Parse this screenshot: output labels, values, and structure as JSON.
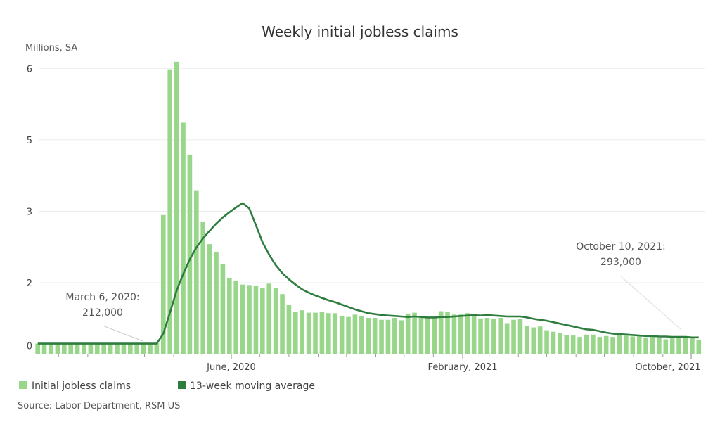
{
  "chart_data": {
    "type": "bar",
    "title": "Weekly initial jobless claims",
    "ylabel": "Millions, SA",
    "xlabel": "",
    "ylim": [
      0,
      6.3
    ],
    "grid": true,
    "yticks": [
      {
        "value": 0,
        "label": "0"
      },
      {
        "value": 1.5,
        "label": "2"
      },
      {
        "value": 3,
        "label": "3"
      },
      {
        "value": 4.5,
        "label": "5"
      },
      {
        "value": 6,
        "label": "6"
      }
    ],
    "xticks": [
      {
        "date": "2020-06-01",
        "label": "June, 2020"
      },
      {
        "date": "2021-02-01",
        "label": "February, 2021"
      },
      {
        "date": "2021-10-01",
        "label": "October, 2021"
      }
    ],
    "colors": {
      "bars": "#98d68a",
      "line": "#2e7d3f",
      "grid": "#ebebeb",
      "axis": "#888888"
    },
    "legend_position": "bottom-left",
    "dates": [
      "2019-11-09",
      "2019-11-16",
      "2019-11-23",
      "2019-11-30",
      "2019-12-07",
      "2019-12-14",
      "2019-12-21",
      "2019-12-28",
      "2020-01-04",
      "2020-01-11",
      "2020-01-18",
      "2020-01-25",
      "2020-02-01",
      "2020-02-08",
      "2020-02-15",
      "2020-02-22",
      "2020-02-29",
      "2020-03-07",
      "2020-03-14",
      "2020-03-21",
      "2020-03-28",
      "2020-04-04",
      "2020-04-11",
      "2020-04-18",
      "2020-04-25",
      "2020-05-02",
      "2020-05-09",
      "2020-05-16",
      "2020-05-23",
      "2020-05-30",
      "2020-06-06",
      "2020-06-13",
      "2020-06-20",
      "2020-06-27",
      "2020-07-04",
      "2020-07-11",
      "2020-07-18",
      "2020-07-25",
      "2020-08-01",
      "2020-08-08",
      "2020-08-15",
      "2020-08-22",
      "2020-08-29",
      "2020-09-05",
      "2020-09-12",
      "2020-09-19",
      "2020-09-26",
      "2020-10-03",
      "2020-10-10",
      "2020-10-17",
      "2020-10-24",
      "2020-10-31",
      "2020-11-07",
      "2020-11-14",
      "2020-11-21",
      "2020-11-28",
      "2020-12-05",
      "2020-12-12",
      "2020-12-19",
      "2020-12-26",
      "2021-01-02",
      "2021-01-09",
      "2021-01-16",
      "2021-01-23",
      "2021-01-30",
      "2021-02-06",
      "2021-02-13",
      "2021-02-20",
      "2021-02-27",
      "2021-03-06",
      "2021-03-13",
      "2021-03-20",
      "2021-03-27",
      "2021-04-03",
      "2021-04-10",
      "2021-04-17",
      "2021-04-24",
      "2021-05-01",
      "2021-05-08",
      "2021-05-15",
      "2021-05-22",
      "2021-05-29",
      "2021-06-05",
      "2021-06-12",
      "2021-06-19",
      "2021-06-26",
      "2021-07-03",
      "2021-07-10",
      "2021-07-17",
      "2021-07-24",
      "2021-07-31",
      "2021-08-07",
      "2021-08-14",
      "2021-08-21",
      "2021-08-28",
      "2021-09-04",
      "2021-09-11",
      "2021-09-18",
      "2021-09-25",
      "2021-10-02",
      "2021-10-09"
    ],
    "series": [
      {
        "name": "Initial jobless claims",
        "type": "bar",
        "values": [
          0.22,
          0.22,
          0.23,
          0.22,
          0.22,
          0.23,
          0.22,
          0.22,
          0.21,
          0.22,
          0.22,
          0.22,
          0.21,
          0.22,
          0.22,
          0.22,
          0.22,
          0.212,
          0.23,
          2.92,
          5.98,
          6.14,
          4.86,
          4.19,
          3.44,
          2.78,
          2.31,
          2.15,
          1.89,
          1.6,
          1.54,
          1.46,
          1.45,
          1.43,
          1.39,
          1.48,
          1.39,
          1.26,
          1.04,
          0.88,
          0.92,
          0.87,
          0.87,
          0.88,
          0.86,
          0.86,
          0.8,
          0.78,
          0.83,
          0.8,
          0.76,
          0.76,
          0.72,
          0.72,
          0.76,
          0.71,
          0.84,
          0.87,
          0.76,
          0.76,
          0.76,
          0.9,
          0.88,
          0.83,
          0.83,
          0.86,
          0.84,
          0.75,
          0.76,
          0.74,
          0.76,
          0.65,
          0.72,
          0.74,
          0.59,
          0.56,
          0.58,
          0.5,
          0.47,
          0.44,
          0.4,
          0.39,
          0.36,
          0.41,
          0.41,
          0.36,
          0.38,
          0.36,
          0.4,
          0.39,
          0.37,
          0.37,
          0.34,
          0.36,
          0.34,
          0.31,
          0.33,
          0.34,
          0.34,
          0.34,
          0.293
        ]
      },
      {
        "name": "13-week moving average",
        "type": "line",
        "values": [
          0.22,
          0.22,
          0.22,
          0.22,
          0.22,
          0.22,
          0.22,
          0.22,
          0.22,
          0.22,
          0.22,
          0.22,
          0.22,
          0.22,
          0.22,
          0.22,
          0.22,
          0.22,
          0.22,
          0.43,
          0.87,
          1.33,
          1.68,
          1.99,
          2.24,
          2.43,
          2.59,
          2.74,
          2.87,
          2.98,
          3.08,
          3.17,
          3.06,
          2.71,
          2.35,
          2.09,
          1.87,
          1.7,
          1.57,
          1.46,
          1.36,
          1.29,
          1.23,
          1.18,
          1.13,
          1.09,
          1.04,
          0.99,
          0.94,
          0.9,
          0.86,
          0.84,
          0.82,
          0.81,
          0.8,
          0.79,
          0.78,
          0.79,
          0.78,
          0.77,
          0.77,
          0.78,
          0.78,
          0.79,
          0.8,
          0.81,
          0.82,
          0.81,
          0.82,
          0.81,
          0.8,
          0.79,
          0.79,
          0.79,
          0.77,
          0.74,
          0.72,
          0.7,
          0.67,
          0.64,
          0.61,
          0.58,
          0.55,
          0.52,
          0.51,
          0.48,
          0.45,
          0.43,
          0.42,
          0.41,
          0.4,
          0.39,
          0.38,
          0.38,
          0.37,
          0.37,
          0.36,
          0.36,
          0.36,
          0.35,
          0.35
        ]
      }
    ],
    "annotations": [
      {
        "line1": "March 6, 2020:",
        "line2": "212,000",
        "date": "2020-03-07"
      },
      {
        "line1": "October 10, 2021:",
        "line2": "293,000",
        "date": "2021-10-09"
      }
    ],
    "source": "Source: Labor Department, RSM US"
  }
}
